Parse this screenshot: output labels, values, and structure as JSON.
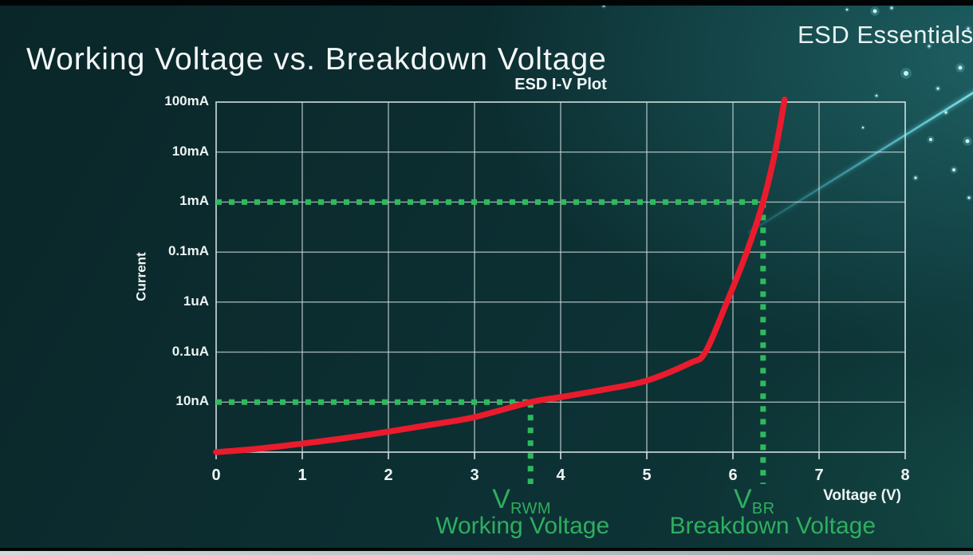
{
  "header": {
    "title": "Working Voltage vs. Breakdown Voltage",
    "brand": "ESD Essentials"
  },
  "chart_data": {
    "type": "line",
    "title": "ESD I-V Plot",
    "xlabel": "Voltage (V)",
    "ylabel": "Current",
    "x_ticks": [
      "0",
      "1",
      "2",
      "3",
      "4",
      "5",
      "6",
      "7",
      "8"
    ],
    "x_range": [
      0,
      8
    ],
    "y_axis": {
      "scale": "log",
      "tick_labels_top_to_bottom": [
        "100mA",
        "10mA",
        "1mA",
        "0.1mA",
        "1uA",
        "0.1uA",
        "10nA"
      ],
      "gridlines_including_frame": 8,
      "note": "one decade per gridline, bottom gridline unlabeled"
    },
    "grid": true,
    "series": [
      {
        "name": "ESD device I-V curve",
        "color": "#ea1b2d",
        "points_format": "[voltage_V, decades_above_bottom_gridline]",
        "points": [
          [
            0,
            0
          ],
          [
            0.5,
            0.07
          ],
          [
            1,
            0.17
          ],
          [
            1.5,
            0.28
          ],
          [
            2,
            0.41
          ],
          [
            2.5,
            0.55
          ],
          [
            3,
            0.7
          ],
          [
            3.65,
            1.0
          ],
          [
            4,
            1.1
          ],
          [
            4.5,
            1.25
          ],
          [
            5,
            1.43
          ],
          [
            5.5,
            1.78
          ],
          [
            5.68,
            2.0
          ],
          [
            5.93,
            3.0
          ],
          [
            6.16,
            4.0
          ],
          [
            6.35,
            5.0
          ],
          [
            6.49,
            6.0
          ],
          [
            6.6,
            7.05
          ]
        ]
      }
    ],
    "annotations": [
      {
        "symbol": "V",
        "subscript": "RWM",
        "label": "Working Voltage",
        "voltage": 3.65,
        "decades_above_bottom": 1,
        "current_at_marker": "10nA",
        "color": "#2fae5f"
      },
      {
        "symbol": "V",
        "subscript": "BR",
        "label": "Breakdown Voltage",
        "voltage": 6.35,
        "decades_above_bottom": 5,
        "current_at_marker": "1mA",
        "color": "#2fae5f"
      }
    ],
    "marker_color": "#2eba5c",
    "legend": "none"
  }
}
